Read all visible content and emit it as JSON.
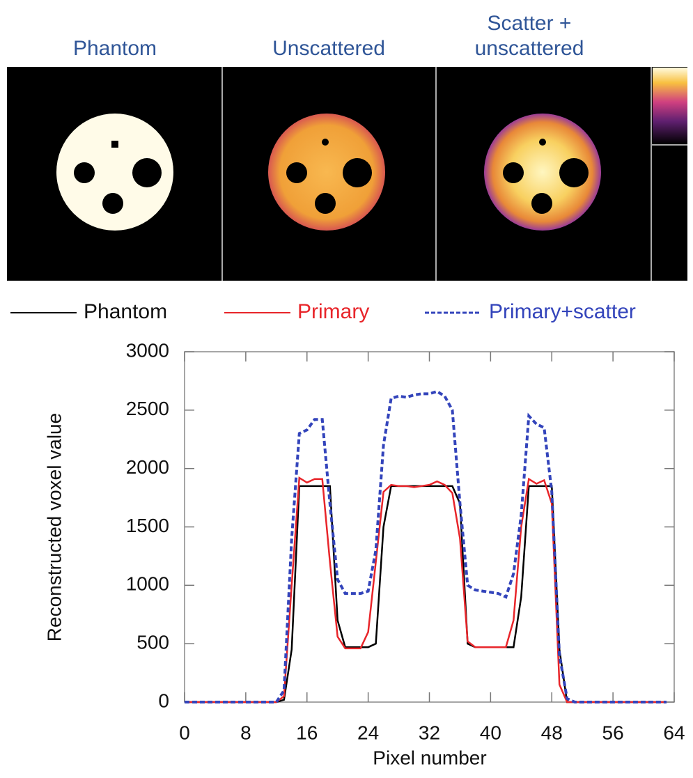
{
  "images": {
    "titles": [
      "Phantom",
      "Unscattered",
      "Scatter + unscattered"
    ]
  },
  "chart_data": {
    "type": "line",
    "xlabel": "Pixel number",
    "ylabel": "Reconstructed voxel value",
    "x": [
      0,
      1,
      2,
      3,
      4,
      5,
      6,
      7,
      8,
      9,
      10,
      11,
      12,
      13,
      14,
      15,
      16,
      17,
      18,
      19,
      20,
      21,
      22,
      23,
      24,
      25,
      26,
      27,
      28,
      29,
      30,
      31,
      32,
      33,
      34,
      35,
      36,
      37,
      38,
      39,
      40,
      41,
      42,
      43,
      44,
      45,
      46,
      47,
      48,
      49,
      50,
      51,
      52,
      53,
      54,
      55,
      56,
      57,
      58,
      59,
      60,
      61,
      62,
      63
    ],
    "series": [
      {
        "name": "Phantom",
        "color": "#000000",
        "dashed": false,
        "values": [
          0,
          0,
          0,
          0,
          0,
          0,
          0,
          0,
          0,
          0,
          0,
          0,
          0,
          20,
          450,
          1850,
          1850,
          1850,
          1850,
          1850,
          700,
          470,
          470,
          470,
          470,
          500,
          1500,
          1850,
          1850,
          1850,
          1850,
          1850,
          1850,
          1850,
          1850,
          1850,
          1700,
          500,
          470,
          470,
          470,
          470,
          470,
          470,
          900,
          1850,
          1850,
          1850,
          1850,
          450,
          0,
          0,
          0,
          0,
          0,
          0,
          0,
          0,
          0,
          0,
          0,
          0,
          0,
          0
        ]
      },
      {
        "name": "Primary",
        "color": "#e8252a",
        "dashed": false,
        "values": [
          0,
          0,
          0,
          0,
          0,
          0,
          0,
          0,
          0,
          0,
          0,
          0,
          0,
          50,
          1000,
          1920,
          1880,
          1910,
          1910,
          1200,
          560,
          460,
          460,
          460,
          600,
          1200,
          1800,
          1860,
          1850,
          1850,
          1840,
          1850,
          1860,
          1890,
          1860,
          1790,
          1400,
          520,
          470,
          470,
          470,
          470,
          470,
          700,
          1500,
          1910,
          1870,
          1900,
          1700,
          150,
          0,
          0,
          0,
          0,
          0,
          0,
          0,
          0,
          0,
          0,
          0,
          0,
          0,
          0
        ]
      },
      {
        "name": "Primary+scatter",
        "color": "#3344bb",
        "dashed": true,
        "values": [
          0,
          0,
          0,
          0,
          0,
          0,
          0,
          0,
          0,
          0,
          0,
          0,
          0,
          100,
          1400,
          2300,
          2330,
          2420,
          2420,
          1700,
          1050,
          930,
          930,
          930,
          950,
          1300,
          2200,
          2600,
          2620,
          2610,
          2630,
          2640,
          2640,
          2660,
          2620,
          2500,
          1700,
          1000,
          960,
          950,
          940,
          930,
          900,
          1100,
          1600,
          2450,
          2380,
          2350,
          1800,
          400,
          30,
          0,
          0,
          0,
          0,
          0,
          0,
          0,
          0,
          0,
          0,
          0,
          0,
          0
        ]
      }
    ],
    "xlim": [
      0,
      64
    ],
    "xticks": [
      0,
      8,
      16,
      24,
      32,
      40,
      48,
      56,
      64
    ],
    "ylim": [
      0,
      3000
    ],
    "yticks": [
      0,
      500,
      1000,
      1500,
      2000,
      2500,
      3000
    ],
    "legend": "top"
  }
}
